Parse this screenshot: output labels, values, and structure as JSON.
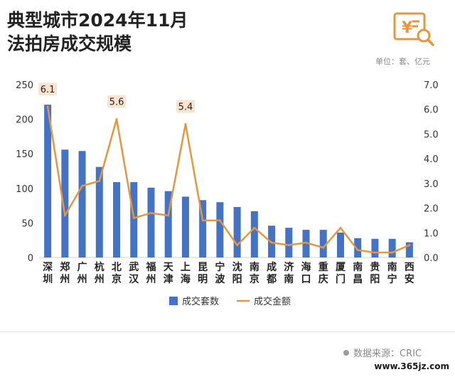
{
  "header": {
    "title_line1": "典型城市2024年11月",
    "title_line2": "法拍房成交规模",
    "unit": "单位：套、亿元"
  },
  "logo": {
    "icon": "yuan-document-search-icon",
    "glyph": "¥",
    "color": "#E8963C"
  },
  "source": {
    "text": "数据来源：CRIC"
  },
  "watermark": {
    "text": "www.365jz.com"
  },
  "colors": {
    "bar": "#4472C4",
    "line": "#E8963C",
    "label_bg": "#FBE3CF"
  },
  "chart_data": {
    "type": "bar",
    "categories": [
      "深圳",
      "郑州",
      "广州",
      "杭州",
      "北京",
      "武汉",
      "福州",
      "天津",
      "上海",
      "昆明",
      "宁波",
      "沈阳",
      "南京",
      "成都",
      "济南",
      "海口",
      "重庆",
      "厦门",
      "南昌",
      "贵阳",
      "南宁",
      "西安"
    ],
    "series": [
      {
        "name": "成交套数",
        "type": "bar",
        "axis": "left",
        "values": [
          221,
          156,
          154,
          131,
          109,
          109,
          101,
          96,
          88,
          83,
          80,
          73,
          67,
          46,
          43,
          40,
          40,
          36,
          28,
          27,
          27,
          22
        ]
      },
      {
        "name": "成交金额",
        "type": "line",
        "axis": "right",
        "values": [
          6.1,
          1.7,
          2.9,
          3.1,
          5.6,
          1.6,
          1.8,
          1.7,
          5.4,
          1.5,
          1.5,
          0.5,
          1.2,
          0.6,
          0.5,
          0.6,
          0.4,
          1.2,
          0.3,
          0.2,
          0.2,
          0.5
        ]
      }
    ],
    "y_left": {
      "min": 0,
      "max": 250,
      "ticks": [
        0,
        50,
        100,
        150,
        200,
        250
      ]
    },
    "y_right": {
      "min": 0,
      "max": 7,
      "ticks": [
        "0.0",
        "1.0",
        "2.0",
        "3.0",
        "4.0",
        "5.0",
        "6.0",
        "7.0"
      ]
    },
    "annotations": [
      {
        "category": "深圳",
        "text": "6.1"
      },
      {
        "category": "北京",
        "text": "5.6"
      },
      {
        "category": "上海",
        "text": "5.4"
      }
    ],
    "legend": {
      "position": "bottom",
      "items": [
        "成交套数",
        "成交金额"
      ]
    },
    "grid": false
  }
}
